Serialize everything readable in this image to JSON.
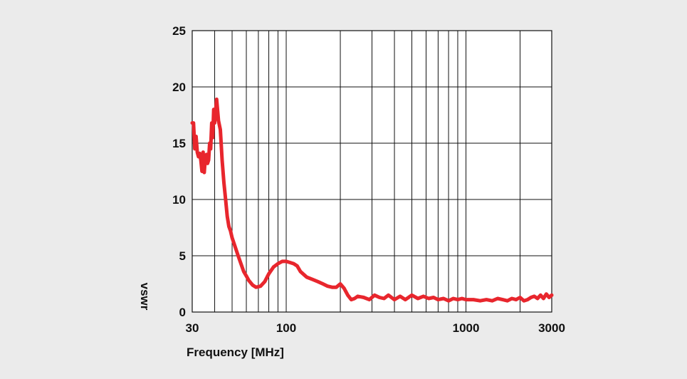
{
  "chart_data": {
    "type": "line",
    "title": "",
    "xlabel": "Frequency [MHz]",
    "ylabel": "vswr",
    "x_scale": "log",
    "xlim": [
      30,
      3000
    ],
    "ylim": [
      0,
      25
    ],
    "x_ticks": [
      30,
      100,
      1000,
      3000
    ],
    "x_tick_labels": [
      "30",
      "100",
      "1000",
      "3000"
    ],
    "y_ticks": [
      0,
      5,
      10,
      15,
      20,
      25
    ],
    "y_tick_labels": [
      "0",
      "5",
      "10",
      "15",
      "20",
      "25"
    ],
    "grid": true,
    "legend": "none",
    "colors": {
      "line": "#e8262d",
      "grid": "#111111",
      "plot_bg": "#ffffff",
      "page_bg": "#ebebeb"
    },
    "series": [
      {
        "x": [
          30,
          30.5,
          31,
          31.5,
          32,
          32.5,
          33,
          33.5,
          34,
          34.5,
          35,
          35.5,
          36,
          36.5,
          37,
          37.5,
          38,
          38.5,
          39,
          39.5,
          40,
          41,
          42,
          43,
          44,
          45,
          46,
          47,
          48,
          49,
          50,
          52,
          54,
          56,
          58,
          60,
          62,
          65,
          68,
          72,
          76,
          80,
          85,
          90,
          95,
          100,
          105,
          110,
          115,
          120,
          130,
          140,
          150,
          160,
          170,
          180,
          190,
          200,
          210,
          220,
          230,
          240,
          250,
          270,
          290,
          310,
          330,
          350,
          370,
          400,
          430,
          460,
          500,
          540,
          580,
          620,
          660,
          700,
          750,
          800,
          850,
          900,
          950,
          1000,
          1100,
          1200,
          1300,
          1400,
          1500,
          1600,
          1700,
          1800,
          1900,
          2000,
          2100,
          2200,
          2300,
          2400,
          2500,
          2600,
          2700,
          2800,
          2900,
          3000
        ],
        "y": [
          16.8,
          16.8,
          14.5,
          15.6,
          14.2,
          13.8,
          14.1,
          13.5,
          12.5,
          14.2,
          12.4,
          13.8,
          14.0,
          13.2,
          13.5,
          15.0,
          14.5,
          16.8,
          15.5,
          18.0,
          16.8,
          18.9,
          17.0,
          16.2,
          13.5,
          11.5,
          10.0,
          8.5,
          7.6,
          7.2,
          6.6,
          5.8,
          5.0,
          4.3,
          3.6,
          3.2,
          2.8,
          2.4,
          2.2,
          2.3,
          2.7,
          3.4,
          4.0,
          4.3,
          4.5,
          4.5,
          4.4,
          4.3,
          4.1,
          3.6,
          3.1,
          2.9,
          2.7,
          2.5,
          2.3,
          2.2,
          2.2,
          2.5,
          2.1,
          1.5,
          1.1,
          1.2,
          1.4,
          1.3,
          1.1,
          1.5,
          1.3,
          1.2,
          1.5,
          1.1,
          1.4,
          1.1,
          1.5,
          1.2,
          1.4,
          1.2,
          1.3,
          1.1,
          1.2,
          1.0,
          1.2,
          1.1,
          1.2,
          1.1,
          1.1,
          1.0,
          1.1,
          1.0,
          1.2,
          1.1,
          1.0,
          1.2,
          1.1,
          1.3,
          1.0,
          1.1,
          1.3,
          1.4,
          1.2,
          1.5,
          1.2,
          1.6,
          1.3,
          1.5
        ]
      }
    ]
  }
}
